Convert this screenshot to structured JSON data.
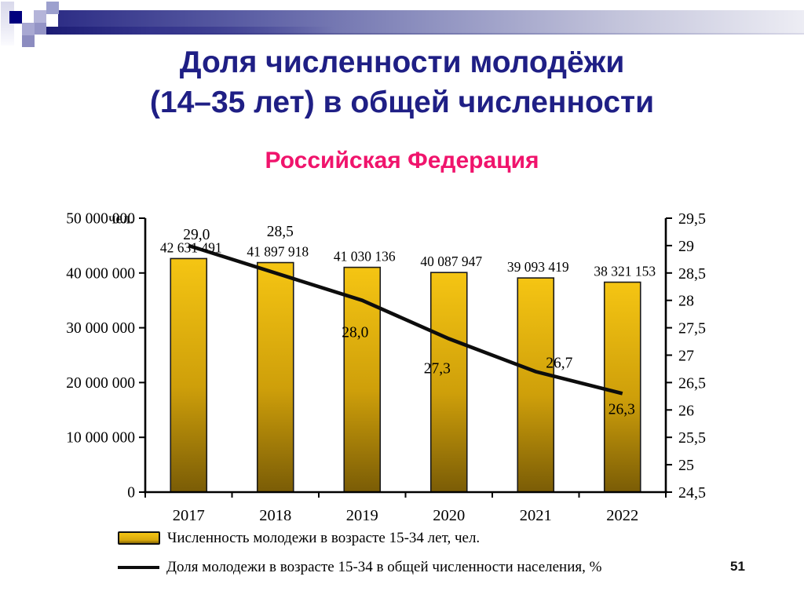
{
  "slide": {
    "title_line1": "Доля численности молодёжи",
    "title_line2": "(14–35 лет) в общей численности",
    "subtitle": "Российская Федерация",
    "page_number": "51"
  },
  "colors": {
    "title": "#1F1F85",
    "subtitle": "#F0146C",
    "bar_top": "#F5C513",
    "bar_bottom": "#7A5C06",
    "bar_border": "#1A1A1A",
    "line": "#0D0D0D",
    "axis": "#000000",
    "header_navy": "#26267E"
  },
  "chart_data": {
    "type": "combo",
    "categories": [
      "2017",
      "2018",
      "2019",
      "2020",
      "2021",
      "2022"
    ],
    "series": [
      {
        "name": "Численность молодежи в возрасте 15-34 лет, чел.",
        "type": "bar",
        "axis": "left",
        "values": [
          42631491,
          41897918,
          41030136,
          40087947,
          39093419,
          38321153
        ],
        "value_labels": [
          "42 631 491",
          "41 897 918",
          "41 030 136",
          "40 087 947",
          "39 093 419",
          "38 321 153"
        ]
      },
      {
        "name": "Доля молодежи в возрасте 15-34 в общей численности населения, %",
        "type": "line",
        "axis": "right",
        "values": [
          29.0,
          28.5,
          28.0,
          27.3,
          26.7,
          26.3
        ],
        "value_labels": [
          "29,0",
          "28,5",
          "28,0",
          "27,3",
          "26,7",
          "26,3"
        ],
        "label_offsets": [
          [
            10,
            -8
          ],
          [
            6,
            -47
          ],
          [
            -9,
            47
          ],
          [
            -15,
            44
          ],
          [
            30,
            -5
          ],
          [
            -1,
            26
          ]
        ]
      }
    ],
    "left_axis": {
      "min": 0,
      "max": 50000000,
      "unit": "чел.",
      "ticks": [
        {
          "v": 0,
          "label": "0"
        },
        {
          "v": 10000000,
          "label": "10 000 000"
        },
        {
          "v": 20000000,
          "label": "20 000 000"
        },
        {
          "v": 30000000,
          "label": "30 000 000"
        },
        {
          "v": 40000000,
          "label": "40 000 000"
        },
        {
          "v": 50000000,
          "label": "50 000 000"
        }
      ]
    },
    "right_axis": {
      "min": 24.5,
      "max": 29.5,
      "ticks": [
        {
          "v": 24.5,
          "label": "24,5"
        },
        {
          "v": 25,
          "label": "25"
        },
        {
          "v": 25.5,
          "label": "25,5"
        },
        {
          "v": 26,
          "label": "26"
        },
        {
          "v": 26.5,
          "label": "26,5"
        },
        {
          "v": 27,
          "label": "27"
        },
        {
          "v": 27.5,
          "label": "27,5"
        },
        {
          "v": 28,
          "label": "28"
        },
        {
          "v": 28.5,
          "label": "28,5"
        },
        {
          "v": 29,
          "label": "29"
        },
        {
          "v": 29.5,
          "label": "29,5"
        }
      ]
    },
    "grid": false,
    "legend_position": "bottom-left"
  }
}
